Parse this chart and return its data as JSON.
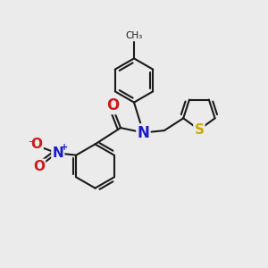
{
  "background_color": "#ebebeb",
  "bond_color": "#1a1a1a",
  "bond_width": 1.5,
  "atom_colors": {
    "N": "#1a1acc",
    "O": "#cc1a1a",
    "S": "#ccaa00",
    "C": "#1a1a1a"
  },
  "layout": {
    "xmin": 0,
    "xmax": 10,
    "ymin": 0,
    "ymax": 10
  }
}
